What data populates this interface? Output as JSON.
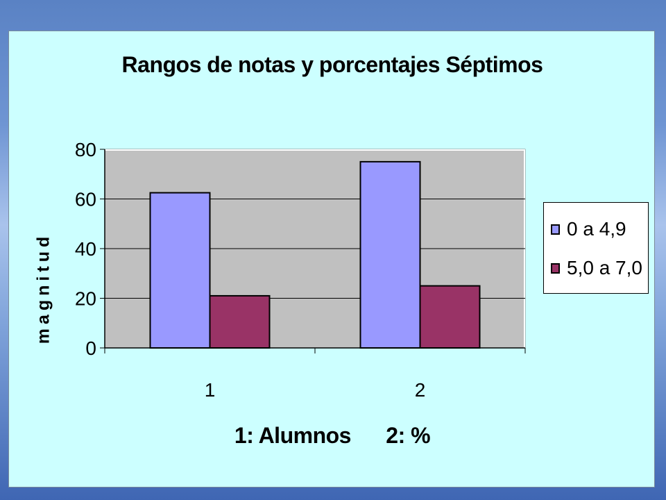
{
  "chart_data": {
    "type": "bar",
    "title": "Rangos de notas y porcentajes Séptimos",
    "ylabel": "magnitud",
    "xlabel": "1: Alumnos      2: %",
    "categories": [
      "1",
      "2"
    ],
    "ylim": [
      0,
      80
    ],
    "yticks": [
      "0",
      "20",
      "40",
      "60",
      "80"
    ],
    "grid": true,
    "legend_position": "right",
    "series": [
      {
        "name": "0 a 4,9",
        "values": [
          62.5,
          75
        ],
        "color": "#9999ff"
      },
      {
        "name": "5,0 a 7,0",
        "values": [
          21,
          25
        ],
        "color": "#993366"
      }
    ],
    "plot_background": "#c0c0c0"
  },
  "colors": {
    "chart_area_background": "#ccffff"
  }
}
